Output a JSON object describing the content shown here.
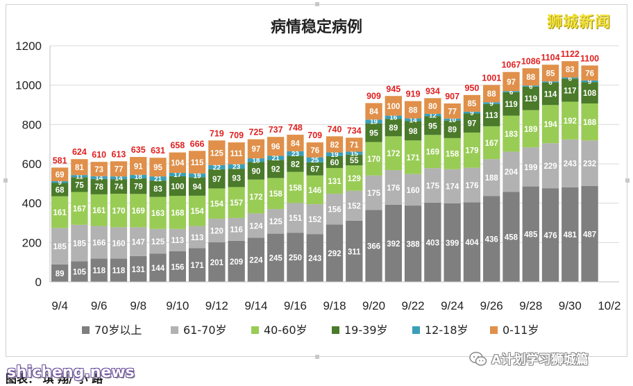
{
  "chart_data": {
    "type": "bar",
    "stacked": true,
    "title": "病情稳定病例",
    "categories": [
      "9/4",
      "9/5",
      "9/6",
      "9/7",
      "9/8",
      "9/9",
      "9/10",
      "9/11",
      "9/12",
      "9/13",
      "9/14",
      "9/15",
      "9/16",
      "9/17",
      "9/18",
      "9/19",
      "9/20",
      "9/21",
      "9/22",
      "9/23",
      "9/24",
      "9/25",
      "9/26",
      "9/27",
      "9/28",
      "9/29",
      "9/30",
      "10/1"
    ],
    "x_tick_labels": [
      "9/4",
      "9/6",
      "9/8",
      "9/10",
      "9/12",
      "9/14",
      "9/16",
      "9/18",
      "9/20",
      "9/22",
      "9/24",
      "9/26",
      "9/28",
      "9/30",
      "10/2"
    ],
    "y_ticks": [
      "0",
      "200",
      "400",
      "600",
      "800",
      "1000",
      "1200"
    ],
    "ylim": [
      0,
      1200
    ],
    "legend_position": "bottom",
    "series": [
      {
        "name": "70岁以上",
        "color": "#7f7f7f",
        "values": [
          89,
          105,
          118,
          118,
          131,
          144,
          156,
          171,
          201,
          209,
          224,
          245,
          250,
          243,
          292,
          311,
          366,
          392,
          388,
          403,
          399,
          404,
          436,
          458,
          485,
          476,
          481,
          487
        ]
      },
      {
        "name": "61-70岁",
        "color": "#b2b2b2",
        "values": [
          185,
          185,
          166,
          160,
          147,
          125,
          113,
          113,
          120,
          116,
          124,
          125,
          151,
          152,
          156,
          152,
          175,
          176,
          160,
          175,
          174,
          176,
          188,
          204,
          199,
          229,
          243,
          232
        ]
      },
      {
        "name": "40-60岁",
        "color": "#99cc55",
        "values": [
          161,
          167,
          161,
          170,
          169,
          163,
          168,
          154,
          154,
          157,
          172,
          158,
          158,
          146,
          131,
          129,
          170,
          172,
          171,
          169,
          158,
          179,
          167,
          183,
          189,
          194,
          192,
          188
        ]
      },
      {
        "name": "19-39岁",
        "color": "#4a7a2a",
        "values": [
          68,
          75,
          78,
          74,
          79,
          83,
          100,
          94,
          97,
          93,
          90,
          92,
          82,
          67,
          60,
          55,
          95,
          89,
          98,
          95,
          89,
          97,
          113,
          119,
          119,
          114,
          117,
          108
        ]
      },
      {
        "name": "12-18岁",
        "color": "#3a9fb8",
        "values": [
          9,
          11,
          14,
          14,
          18,
          21,
          17,
          19,
          22,
          23,
          18,
          21,
          23,
          25,
          19,
          15,
          19,
          16,
          14,
          12,
          10,
          9,
          9,
          6,
          6,
          6,
          6,
          9
        ]
      },
      {
        "name": "0-11岁",
        "color": "#e0904a",
        "values": [
          69,
          81,
          73,
          77,
          91,
          95,
          104,
          115,
          125,
          111,
          97,
          96,
          84,
          76,
          82,
          71,
          84,
          100,
          88,
          80,
          77,
          85,
          88,
          97,
          88,
          85,
          83,
          76
        ]
      }
    ],
    "totals": [
      581,
      624,
      610,
      613,
      635,
      631,
      658,
      666,
      719,
      709,
      725,
      737,
      748,
      709,
      740,
      734,
      909,
      945,
      919,
      934,
      907,
      950,
      1001,
      1067,
      1086,
      1104,
      1122,
      1100
    ]
  },
  "brand": "狮城新闻",
  "watermark_site": "shicheng.news",
  "watermark_account": "A计划学习狮城篇",
  "source_line": "图表：  琪  翔/  小  路",
  "colors": {
    "total_label": "#e02020",
    "segment_label": "#ffffff"
  }
}
